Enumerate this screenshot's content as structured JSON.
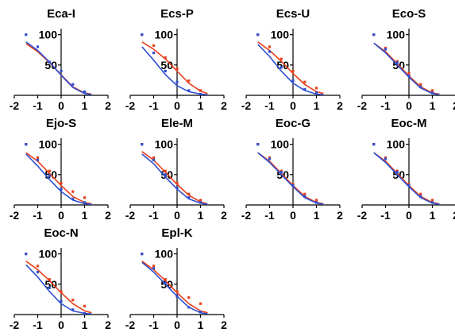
{
  "colors": {
    "red": "#e8401c",
    "blue": "#2f4fd1",
    "purple": "#7a3fb8",
    "axis": "#000000"
  },
  "chart_data": [
    {
      "type": "line",
      "title": "Eca-I",
      "xlim": [
        -2,
        2
      ],
      "xticks": [
        "-2",
        "-1",
        "0",
        "1",
        "2"
      ],
      "ylim": [
        0,
        110
      ],
      "yticks": [
        "50",
        "100"
      ],
      "series": [
        {
          "color": "red",
          "x": [
            -1.5,
            -1,
            -0.5,
            0,
            0.5,
            1,
            1.3
          ],
          "y": [
            85,
            72,
            54,
            34,
            14,
            4,
            2
          ]
        },
        {
          "color": "blue",
          "x": [
            -1.5,
            -1,
            -0.5,
            0,
            0.5,
            1,
            1.3
          ],
          "y": [
            88,
            74,
            55,
            33,
            13,
            3,
            1
          ],
          "points": [
            [
              -1.5,
              100
            ],
            [
              -1,
              80
            ],
            [
              -0.5,
              55
            ],
            [
              0,
              40
            ],
            [
              0.5,
              18
            ],
            [
              1,
              6
            ]
          ]
        }
      ]
    },
    {
      "type": "line",
      "title": "Ecs-P",
      "xlim": [
        -2,
        2
      ],
      "xticks": [
        "-2",
        "-1",
        "0",
        "1",
        "2"
      ],
      "ylim": [
        0,
        110
      ],
      "yticks": [
        "50",
        "100"
      ],
      "series": [
        {
          "color": "red",
          "x": [
            -1.5,
            -1,
            -0.5,
            0,
            0.5,
            1,
            1.3
          ],
          "y": [
            88,
            76,
            60,
            40,
            20,
            7,
            3
          ],
          "points": [
            [
              -1.5,
              100
            ],
            [
              -1,
              82
            ],
            [
              -0.5,
              62
            ],
            [
              0,
              44
            ],
            [
              0.5,
              24
            ],
            [
              1,
              8
            ]
          ]
        },
        {
          "color": "blue",
          "x": [
            -1.5,
            -1,
            -0.5,
            0,
            0.5,
            1,
            1.3
          ],
          "y": [
            80,
            58,
            34,
            16,
            6,
            2,
            1
          ],
          "points": [
            [
              -1.5,
              100
            ],
            [
              -1,
              70
            ],
            [
              -0.5,
              40
            ],
            [
              0,
              22
            ],
            [
              0.5,
              8
            ],
            [
              1,
              2
            ]
          ]
        }
      ]
    },
    {
      "type": "line",
      "title": "Ecs-U",
      "xlim": [
        -2,
        2
      ],
      "xticks": [
        "-2",
        "-1",
        "0",
        "1",
        "2"
      ],
      "ylim": [
        0,
        110
      ],
      "yticks": [
        "50",
        "100"
      ],
      "series": [
        {
          "color": "red",
          "x": [
            -1.5,
            -1,
            -0.5,
            0,
            0.5,
            1,
            1.3
          ],
          "y": [
            88,
            74,
            56,
            36,
            18,
            6,
            3
          ],
          "points": [
            [
              -1.5,
              100
            ],
            [
              -1,
              80
            ],
            [
              -0.5,
              60
            ],
            [
              0,
              40
            ],
            [
              0.5,
              22
            ],
            [
              1,
              12
            ]
          ]
        },
        {
          "color": "blue",
          "x": [
            -1.5,
            -1,
            -0.5,
            0,
            0.5,
            1,
            1.3
          ],
          "y": [
            84,
            64,
            40,
            20,
            8,
            2,
            1
          ],
          "points": [
            [
              -1.5,
              100
            ],
            [
              -1,
              72
            ],
            [
              -0.5,
              46
            ],
            [
              0,
              24
            ],
            [
              0.5,
              10
            ],
            [
              1,
              4
            ]
          ]
        }
      ]
    },
    {
      "type": "line",
      "title": "Eco-S",
      "xlim": [
        -2,
        2
      ],
      "xticks": [
        "-2",
        "-1",
        "0",
        "1",
        "2"
      ],
      "ylim": [
        0,
        110
      ],
      "yticks": [
        "50",
        "100"
      ],
      "series": [
        {
          "color": "red",
          "x": [
            -1.5,
            -1,
            -0.5,
            0,
            0.5,
            1,
            1.3
          ],
          "y": [
            86,
            72,
            52,
            32,
            14,
            4,
            2
          ],
          "points": [
            [
              -1.5,
              100
            ],
            [
              -1,
              78
            ],
            [
              -0.5,
              56
            ],
            [
              0,
              36
            ],
            [
              0.5,
              18
            ],
            [
              1,
              8
            ]
          ]
        },
        {
          "color": "blue",
          "x": [
            -1.5,
            -1,
            -0.5,
            0,
            0.5,
            1,
            1.3
          ],
          "y": [
            86,
            70,
            50,
            30,
            12,
            3,
            1
          ],
          "points": [
            [
              -1.5,
              100
            ],
            [
              -1,
              76
            ],
            [
              -0.5,
              54
            ],
            [
              0,
              32
            ],
            [
              0.5,
              14
            ],
            [
              1,
              4
            ]
          ]
        }
      ]
    },
    {
      "type": "line",
      "title": "Ejo-S",
      "xlim": [
        -2,
        2
      ],
      "xticks": [
        "-2",
        "-1",
        "0",
        "1",
        "2"
      ],
      "ylim": [
        0,
        110
      ],
      "yticks": [
        "50",
        "100"
      ],
      "series": [
        {
          "color": "red",
          "x": [
            -1.5,
            -1,
            -0.5,
            0,
            0.5,
            1,
            1.3
          ],
          "y": [
            86,
            72,
            52,
            32,
            14,
            4,
            2
          ],
          "points": [
            [
              -1.5,
              100
            ],
            [
              -1,
              78
            ],
            [
              -0.5,
              56
            ],
            [
              0,
              36
            ],
            [
              0.5,
              22
            ],
            [
              1,
              12
            ]
          ]
        },
        {
          "color": "blue",
          "x": [
            -1.5,
            -1,
            -0.5,
            0,
            0.5,
            1,
            1.3
          ],
          "y": [
            84,
            64,
            42,
            22,
            8,
            2,
            1
          ],
          "points": [
            [
              -1.5,
              100
            ],
            [
              -1,
              74
            ],
            [
              -0.5,
              48
            ],
            [
              0,
              26
            ],
            [
              0.5,
              10
            ],
            [
              1,
              4
            ]
          ]
        }
      ]
    },
    {
      "type": "line",
      "title": "Ele-M",
      "xlim": [
        -2,
        2
      ],
      "xticks": [
        "-2",
        "-1",
        "0",
        "1",
        "2"
      ],
      "ylim": [
        0,
        110
      ],
      "yticks": [
        "50",
        "100"
      ],
      "series": [
        {
          "color": "red",
          "x": [
            -1.5,
            -1,
            -0.5,
            0,
            0.5,
            1,
            1.3
          ],
          "y": [
            88,
            74,
            54,
            34,
            16,
            5,
            2
          ],
          "points": [
            [
              -1.5,
              100
            ],
            [
              -1,
              78
            ],
            [
              -0.5,
              56
            ],
            [
              0,
              36
            ],
            [
              0.5,
              18
            ],
            [
              1,
              8
            ]
          ]
        },
        {
          "color": "blue",
          "x": [
            -1.5,
            -1,
            -0.5,
            0,
            0.5,
            1,
            1.3
          ],
          "y": [
            84,
            68,
            46,
            26,
            10,
            3,
            1
          ],
          "points": [
            [
              -1.5,
              100
            ],
            [
              -1,
              74
            ],
            [
              -0.5,
              50
            ],
            [
              0,
              28
            ],
            [
              0.5,
              12
            ],
            [
              1,
              4
            ]
          ]
        }
      ]
    },
    {
      "type": "line",
      "title": "Eoc-G",
      "xlim": [
        -2,
        2
      ],
      "xticks": [
        "-2",
        "-1",
        "0",
        "1",
        "2"
      ],
      "ylim": [
        0,
        110
      ],
      "yticks": [
        "50",
        "100"
      ],
      "series": [
        {
          "color": "red",
          "x": [
            -1.5,
            -1,
            -0.5,
            0,
            0.5,
            1,
            1.3
          ],
          "y": [
            86,
            72,
            52,
            32,
            14,
            4,
            2
          ],
          "points": [
            [
              -1.5,
              100
            ],
            [
              -1,
              78
            ],
            [
              -0.5,
              56
            ],
            [
              0,
              34
            ],
            [
              0.5,
              18
            ],
            [
              1,
              8
            ]
          ]
        },
        {
          "color": "blue",
          "x": [
            -1.5,
            -1,
            -0.5,
            0,
            0.5,
            1,
            1.3
          ],
          "y": [
            86,
            70,
            50,
            30,
            12,
            3,
            1
          ],
          "points": [
            [
              -1.5,
              100
            ],
            [
              -1,
              76
            ],
            [
              -0.5,
              54
            ],
            [
              0,
              32
            ],
            [
              0.5,
              14
            ],
            [
              1,
              4
            ]
          ]
        }
      ]
    },
    {
      "type": "line",
      "title": "Eoc-M",
      "xlim": [
        -2,
        2
      ],
      "xticks": [
        "-2",
        "-1",
        "0",
        "1",
        "2"
      ],
      "ylim": [
        0,
        110
      ],
      "yticks": [
        "50",
        "100"
      ],
      "series": [
        {
          "color": "red",
          "x": [
            -1.5,
            -1,
            -0.5,
            0,
            0.5,
            1,
            1.3
          ],
          "y": [
            86,
            72,
            52,
            32,
            14,
            4,
            2
          ],
          "points": [
            [
              -1.5,
              100
            ],
            [
              -1,
              78
            ],
            [
              -0.5,
              56
            ],
            [
              0,
              34
            ],
            [
              0.5,
              18
            ],
            [
              1,
              8
            ]
          ]
        },
        {
          "color": "blue",
          "x": [
            -1.5,
            -1,
            -0.5,
            0,
            0.5,
            1,
            1.3
          ],
          "y": [
            86,
            70,
            50,
            30,
            12,
            3,
            1
          ],
          "points": [
            [
              -1.5,
              100
            ],
            [
              -1,
              76
            ],
            [
              -0.5,
              54
            ],
            [
              0,
              32
            ],
            [
              0.5,
              14
            ],
            [
              1,
              4
            ]
          ]
        }
      ]
    },
    {
      "type": "line",
      "title": "Eoc-N",
      "xlim": [
        -2,
        2
      ],
      "xticks": [
        "-2",
        "-1",
        "0",
        "1",
        "2"
      ],
      "ylim": [
        0,
        110
      ],
      "yticks": [
        "50",
        "100"
      ],
      "series": [
        {
          "color": "red",
          "x": [
            -1.5,
            -1,
            -0.5,
            0,
            0.5,
            1,
            1.3
          ],
          "y": [
            88,
            74,
            56,
            36,
            18,
            6,
            3
          ],
          "points": [
            [
              -1.5,
              100
            ],
            [
              -1,
              80
            ],
            [
              -0.5,
              58
            ],
            [
              0,
              38
            ],
            [
              0.5,
              24
            ],
            [
              1,
              14
            ]
          ]
        },
        {
          "color": "blue",
          "x": [
            -1.5,
            -1,
            -0.5,
            0,
            0.5,
            1,
            1.3
          ],
          "y": [
            82,
            62,
            38,
            18,
            6,
            2,
            1
          ],
          "points": [
            [
              -1.5,
              100
            ],
            [
              -1,
              70
            ],
            [
              -0.5,
              44
            ],
            [
              0,
              22
            ],
            [
              0.5,
              8
            ],
            [
              1,
              2
            ]
          ]
        }
      ]
    },
    {
      "type": "line",
      "title": "Epl-K",
      "xlim": [
        -2,
        2
      ],
      "xticks": [
        "-2",
        "-1",
        "0",
        "1",
        "2"
      ],
      "ylim": [
        0,
        110
      ],
      "yticks": [
        "50",
        "100"
      ],
      "series": [
        {
          "color": "red",
          "x": [
            -1.5,
            -1,
            -0.5,
            0,
            0.5,
            1,
            1.3
          ],
          "y": [
            88,
            74,
            56,
            36,
            18,
            6,
            3
          ],
          "points": [
            [
              -1.5,
              100
            ],
            [
              -1,
              80
            ],
            [
              -0.5,
              58
            ],
            [
              0,
              38
            ],
            [
              0.5,
              28
            ],
            [
              1,
              18
            ]
          ]
        },
        {
          "color": "blue",
          "x": [
            -1.5,
            -1,
            -0.5,
            0,
            0.5,
            1,
            1.3
          ],
          "y": [
            86,
            70,
            50,
            30,
            12,
            3,
            1
          ],
          "points": [
            [
              -1.5,
              100
            ],
            [
              -1,
              76
            ],
            [
              -0.5,
              52
            ],
            [
              0,
              30
            ],
            [
              0.5,
              12
            ],
            [
              1,
              4
            ]
          ]
        }
      ]
    }
  ]
}
